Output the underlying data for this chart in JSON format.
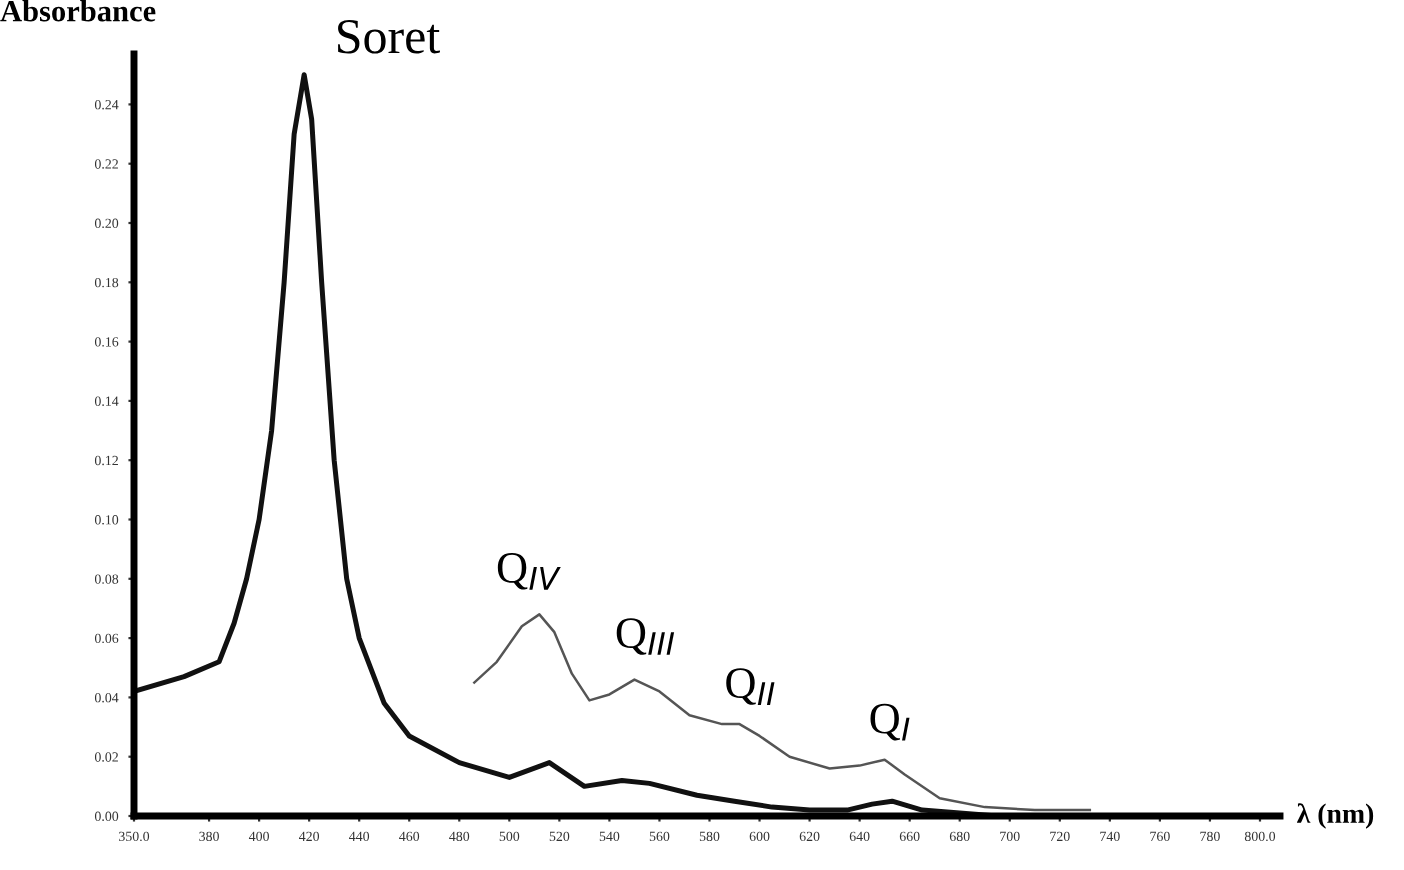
{
  "chart_data": {
    "type": "line",
    "ylabel": "Absorbance",
    "xlabel": "λ (nm)",
    "xlim": [
      350,
      808
    ],
    "ylim": [
      0,
      0.257
    ],
    "xticks": [
      {
        "value": 350,
        "label": "350.0"
      },
      380,
      400,
      420,
      440,
      460,
      480,
      500,
      520,
      540,
      560,
      580,
      600,
      620,
      640,
      660,
      680,
      700,
      720,
      740,
      760,
      780,
      {
        "value": 800,
        "label": "800.0"
      }
    ],
    "yticks": [
      {
        "value": 0,
        "label": "0.00"
      },
      0.02,
      0.04,
      0.06,
      0.08,
      {
        "value": 0.1,
        "label": "0.10"
      },
      0.12,
      0.14,
      0.16,
      0.18,
      {
        "value": 0.2,
        "label": "0.20"
      },
      0.22,
      0.24
    ],
    "grid": false,
    "legend": false,
    "marker": "none",
    "line_style": "solid",
    "series": [
      {
        "color": "#111111",
        "x": [
          350,
          370,
          384,
          390,
          395,
          400,
          405,
          410,
          414,
          418,
          421,
          425,
          430,
          435,
          440,
          450,
          460,
          480,
          500,
          516,
          530,
          545,
          556,
          575,
          590,
          605,
          620,
          635,
          645,
          653,
          665,
          680,
          695,
          706
        ],
        "values": [
          0.042,
          0.047,
          0.052,
          0.065,
          0.08,
          0.1,
          0.13,
          0.18,
          0.23,
          0.25,
          0.235,
          0.18,
          0.12,
          0.08,
          0.06,
          0.038,
          0.027,
          0.018,
          0.013,
          0.018,
          0.01,
          0.012,
          0.011,
          0.007,
          0.005,
          0.003,
          0.002,
          0.002,
          0.004,
          0.005,
          0.002,
          0.001,
          0.0,
          0.0
        ]
      },
      {
        "color": "#555555",
        "x": [
          486,
          495,
          505,
          512,
          518,
          525,
          532,
          540,
          550,
          560,
          572,
          585,
          592,
          600,
          612,
          628,
          640,
          650,
          658,
          672,
          690,
          710,
          732
        ],
        "values": [
          0.045,
          0.052,
          0.064,
          0.068,
          0.062,
          0.048,
          0.039,
          0.041,
          0.046,
          0.042,
          0.034,
          0.031,
          0.031,
          0.027,
          0.02,
          0.016,
          0.017,
          0.019,
          0.014,
          0.006,
          0.003,
          0.002,
          0.002
        ]
      }
    ],
    "annotations": [
      {
        "text": "Soret",
        "x": 418,
        "y": 0.25
      },
      {
        "text": "Q$_{IV}$",
        "x": 512,
        "y": 0.068
      },
      {
        "text": "Q$_{III}$",
        "x": 550,
        "y": 0.046
      },
      {
        "text": "Q$_{II}$",
        "x": 592,
        "y": 0.031
      },
      {
        "text": "Q$_{I}$",
        "x": 650,
        "y": 0.019
      }
    ]
  }
}
